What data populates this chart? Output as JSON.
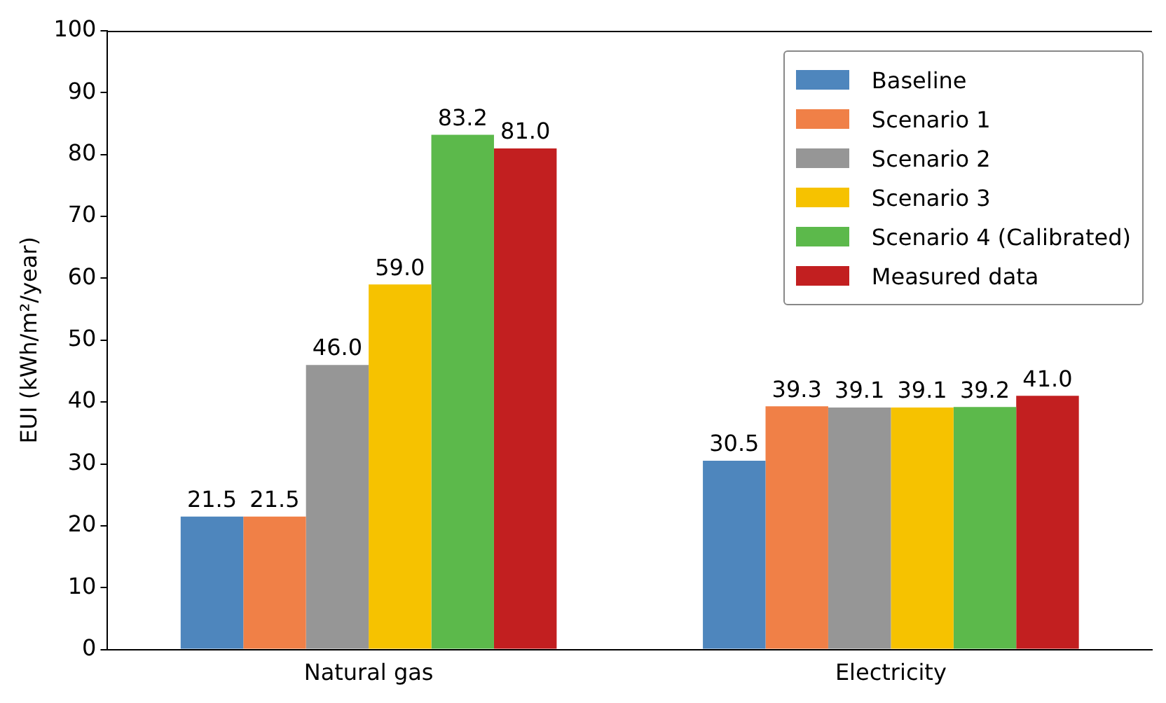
{
  "chart_data": {
    "type": "bar",
    "ylabel": "EUI (kWh/m²/year)",
    "categories": [
      "Natural gas",
      "Electricity"
    ],
    "series": [
      {
        "name": "Baseline",
        "color": "#4e86bd",
        "values": [
          21.5,
          30.5
        ],
        "value_labels": [
          "21.5",
          "30.5"
        ]
      },
      {
        "name": "Scenario 1",
        "color": "#f08047",
        "values": [
          21.5,
          39.3
        ],
        "value_labels": [
          "21.5",
          "39.3"
        ]
      },
      {
        "name": "Scenario 2",
        "color": "#969696",
        "values": [
          46.0,
          39.1
        ],
        "value_labels": [
          "46.0",
          "39.1"
        ]
      },
      {
        "name": "Scenario 3",
        "color": "#f6c200",
        "values": [
          59.0,
          39.1
        ],
        "value_labels": [
          "59.0",
          "39.1"
        ]
      },
      {
        "name": "Scenario 4 (Calibrated)",
        "color": "#5cb94b",
        "values": [
          83.2,
          39.2
        ],
        "value_labels": [
          "83.2",
          "39.2"
        ]
      },
      {
        "name": "Measured data",
        "color": "#c21f20",
        "values": [
          81.0,
          41.0
        ],
        "value_labels": [
          "81.0",
          "41.0"
        ]
      }
    ],
    "ylim": [
      0,
      100
    ],
    "yticks": [
      0,
      10,
      20,
      30,
      40,
      50,
      60,
      70,
      80,
      90,
      100
    ],
    "grid": false,
    "legend": "top right"
  }
}
